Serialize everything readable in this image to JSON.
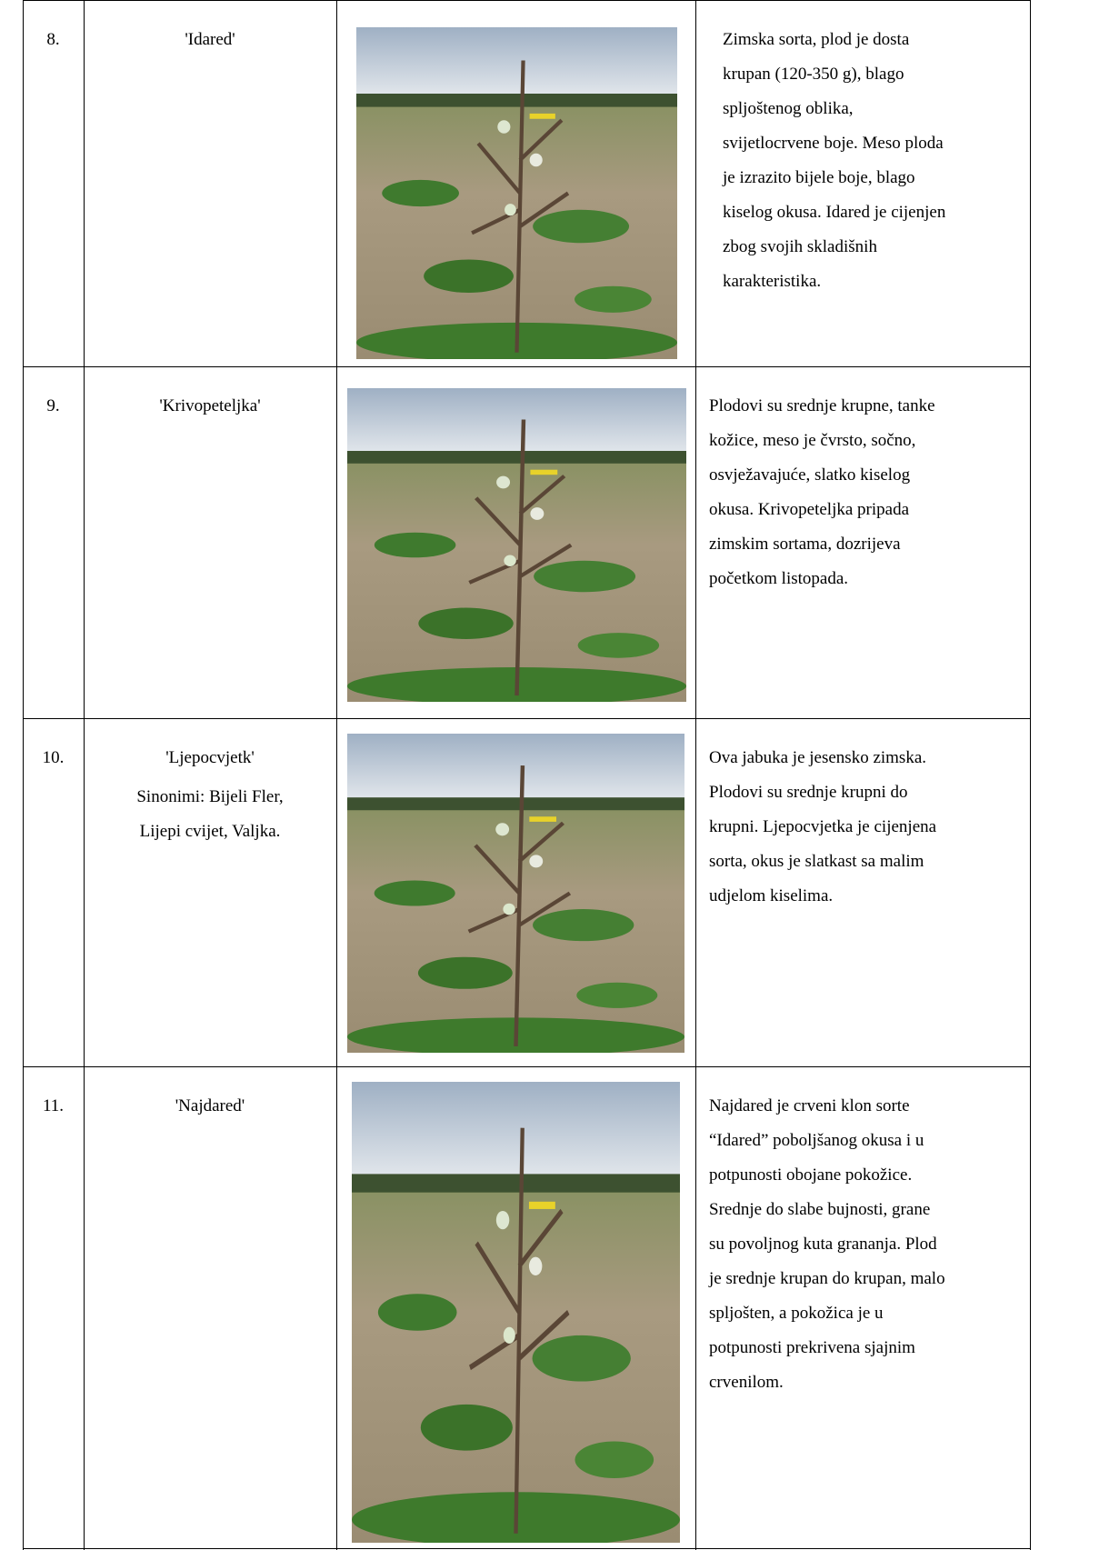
{
  "table": {
    "rows": [
      {
        "number": "8.",
        "name": "'Idared'",
        "synonyms_lines": [],
        "description_lines": [
          "Zimska sorta, plod je dosta",
          "krupan (120-350 g), blago",
          "spljoštenog oblika,",
          "svijetlocrvene boje. Meso ploda",
          "je izrazito bijele boje, blago",
          "kiselog okusa. Idared je cijenjen",
          "zbog svojih skladišnih",
          "karakteristika."
        ]
      },
      {
        "number": "9.",
        "name": "'Krivopeteljka'",
        "synonyms_lines": [],
        "description_lines": [
          "Plodovi su srednje krupne, tanke",
          "kožice, meso je čvrsto, sočno,",
          "osvježavajuće, slatko kiselog",
          "okusa. Krivopeteljka pripada",
          "zimskim sortama, dozrijeva",
          "početkom listopada."
        ]
      },
      {
        "number": "10.",
        "name": "'Ljepocvjetk'",
        "synonyms_lines": [
          "Sinonimi: Bijeli Fler,",
          "Lijepi cvijet, Valjka."
        ],
        "description_lines": [
          "Ova jabuka je jesensko zimska.",
          "Plodovi su srednje krupni do",
          "krupni. Ljepocvjetka je cijenjena",
          "sorta, okus je slatkast sa malim",
          "udjelom kiselima."
        ]
      },
      {
        "number": "11.",
        "name": "'Najdared'",
        "synonyms_lines": [],
        "description_lines": [
          "Najdared je crveni klon sorte",
          "“Idared” poboljšanog okusa i u",
          "potpunosti obojane pokožice.",
          "Srednje do slabe bujnosti, grane",
          "su povoljnog kuta grananja. Plod",
          "je srednje krupan do krupan, malo",
          "spljošten, a pokožica je u",
          "potpunosti prekrivena sjajnim",
          "crvenilom."
        ]
      }
    ]
  }
}
